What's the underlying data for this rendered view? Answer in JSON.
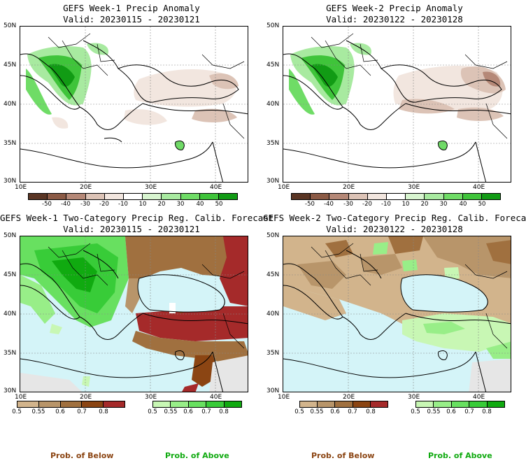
{
  "panels": [
    {
      "title": "GEFS Week-1 Precip Anomaly",
      "valid": "Valid: 20230115 - 20230121",
      "lat_labels": [
        "50N",
        "45N",
        "40N",
        "35N",
        "30N"
      ],
      "lon_labels": [
        "10E",
        "20E",
        "30E",
        "40E"
      ],
      "colorbar_ticks": [
        "-50",
        "-40",
        "-30",
        "-20",
        "-10",
        "10",
        "20",
        "30",
        "40",
        "50"
      ]
    },
    {
      "title": "GEFS Week-2 Precip Anomaly",
      "valid": "Valid: 20230122 - 20230128",
      "lat_labels": [
        "50N",
        "45N",
        "40N",
        "35N",
        "30N"
      ],
      "lon_labels": [
        "10E",
        "20E",
        "30E",
        "40E"
      ],
      "colorbar_ticks": [
        "-50",
        "-40",
        "-30",
        "-20",
        "-10",
        "10",
        "20",
        "30",
        "40",
        "50"
      ]
    },
    {
      "title": "GEFS Week-1 Two-Category Precip Reg. Calib. Forecast",
      "valid": "Valid: 20230115 - 20230121",
      "lat_labels": [
        "50N",
        "45N",
        "40N",
        "35N",
        "30N"
      ],
      "lon_labels": [
        "10E",
        "20E",
        "30E",
        "40E"
      ],
      "below_ticks": [
        "0.5",
        "0.55",
        "0.6",
        "0.7",
        "0.8"
      ],
      "above_ticks": [
        "0.5",
        "0.55",
        "0.6",
        "0.7",
        "0.8"
      ]
    },
    {
      "title": "GEFS Week-2 Two-Category Precip Reg. Calib. Forecast",
      "valid": "Valid: 20230122 - 20230128",
      "lat_labels": [
        "50N",
        "45N",
        "40N",
        "35N",
        "30N"
      ],
      "lon_labels": [
        "10E",
        "20E",
        "30E",
        "40E"
      ],
      "below_ticks": [
        "0.5",
        "0.55",
        "0.6",
        "0.7",
        "0.8"
      ],
      "above_ticks": [
        "0.5",
        "0.55",
        "0.6",
        "0.7",
        "0.8"
      ]
    }
  ],
  "anomaly_colors": [
    "#5a3524",
    "#8b5a45",
    "#b58877",
    "#dcc3b6",
    "#f2e6df",
    "#ffffff",
    "#d8f5d0",
    "#a8eaa0",
    "#6fdc66",
    "#3fc43a",
    "#119b14"
  ],
  "below_colors": [
    "#d2b48c",
    "#b8956a",
    "#a0703f",
    "#8b4513",
    "#a52a2a"
  ],
  "above_colors": [
    "#c8f7b4",
    "#98ee88",
    "#68e060",
    "#38cc38",
    "#10aa10"
  ],
  "legend": {
    "below": "Prob. of Below",
    "above": "Prob. of Above"
  },
  "colors": {
    "below_text": "#8b4513",
    "above_text": "#10aa10",
    "sea": "#d4f4f8",
    "nodata": "#e6e6e6"
  }
}
